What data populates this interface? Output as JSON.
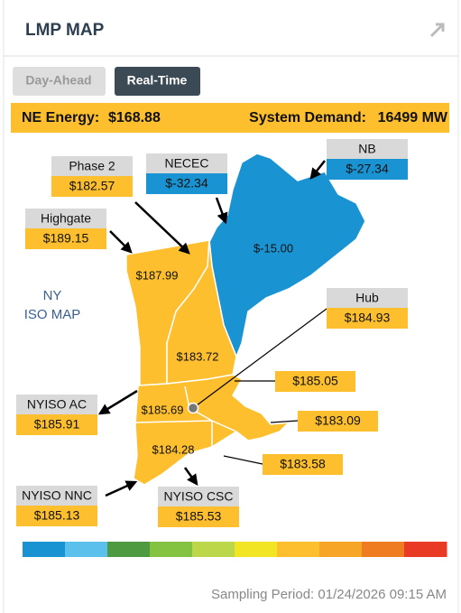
{
  "header": {
    "title": "LMP MAP"
  },
  "tabs": [
    "Day-Ahead",
    "Real-Time"
  ],
  "summary": {
    "energy_label": "NE Energy:",
    "energy_value": "$168.88",
    "demand_label": "System Demand:",
    "demand_value": "16499 MW"
  },
  "map_label": [
    "NY",
    "ISO MAP"
  ],
  "zones": [
    "$-15.00",
    "$187.99",
    "$183.72",
    "$185.69",
    "$184.28"
  ],
  "callouts": [
    {
      "name": "Phase 2",
      "price": "$182.57"
    },
    {
      "name": "NECEC",
      "price": "$-32.34"
    },
    {
      "name": "NB",
      "price": "$-27.34"
    },
    {
      "name": "Highgate",
      "price": "$189.15"
    },
    {
      "name": "Hub",
      "price": "$184.93"
    },
    {
      "name": "NYISO AC",
      "price": "$185.91"
    },
    {
      "name": "NYISO NNC",
      "price": "$185.13"
    },
    {
      "name": "NYISO CSC",
      "price": "$185.53"
    }
  ],
  "price_tags": [
    "$185.05",
    "$183.09",
    "$183.58"
  ],
  "color_scale": [
    "#1a93d3",
    "#5bc0eb",
    "#4e9a40",
    "#83c341",
    "#bcd84a",
    "#f2e523",
    "#fdbf2d",
    "#f7a526",
    "#f07c22",
    "#e93a25"
  ],
  "footer": {
    "sampling_period": "Sampling Period: 01/24/2026 09:15 AM"
  }
}
